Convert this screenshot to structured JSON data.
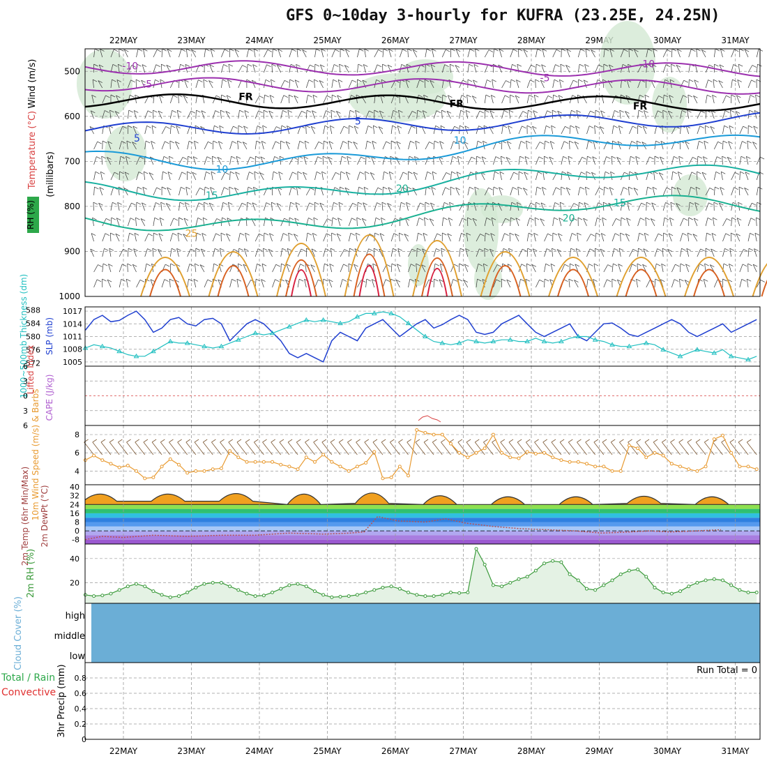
{
  "title": "GFS 0~10day 3-hourly for KUFRA (23.25E, 24.25N)",
  "dates": [
    "22MAY",
    "23MAY",
    "24MAY",
    "25MAY",
    "26MAY",
    "27MAY",
    "28MAY",
    "29MAY",
    "30MAY",
    "31MAY"
  ],
  "colors": {
    "grid": "#999999",
    "frame": "#000000",
    "slp": "#1f3fd0",
    "thick": "#1fbfc0",
    "speed": "#e89a30",
    "barb": "#7a5530",
    "rh2m": "#3a9a3a",
    "dewpt": "#b85050",
    "cloud": "#6baed6"
  },
  "chart_data": [
    {
      "name": "upper-air",
      "type": "contour",
      "ylabel": "(millibars)",
      "side_labels": [
        "Wind (m/s)",
        "Temperature (°C)",
        "RH (%)"
      ],
      "yticks": [
        500,
        600,
        700,
        800,
        900,
        1000
      ],
      "ylim": [
        1000,
        450
      ],
      "contour_labels": [
        {
          "text": "-10",
          "day": 0.1,
          "p": 488,
          "color": "#9b2fae"
        },
        {
          "text": "-10",
          "day": 7.7,
          "p": 483,
          "color": "#9b2fae"
        },
        {
          "text": "-5",
          "day": 0.35,
          "p": 528,
          "color": "#9b2fae"
        },
        {
          "text": "-5",
          "day": 6.2,
          "p": 514,
          "color": "#9b2fae"
        },
        {
          "text": "FR",
          "day": 1.8,
          "p": 556,
          "color": "#000000"
        },
        {
          "text": "FR",
          "day": 4.9,
          "p": 572,
          "color": "#000000"
        },
        {
          "text": "FR",
          "day": 7.6,
          "p": 577,
          "color": "#000000"
        },
        {
          "text": "5",
          "day": 0.2,
          "p": 648,
          "color": "#1f3fd0"
        },
        {
          "text": "5",
          "day": 3.45,
          "p": 610,
          "color": "#1f3fd0"
        },
        {
          "text": "10",
          "day": 1.45,
          "p": 717,
          "color": "#1a9ad8"
        },
        {
          "text": "10",
          "day": 4.95,
          "p": 653,
          "color": "#1a9ad8"
        },
        {
          "text": "15",
          "day": 1.3,
          "p": 775,
          "color": "#18b0a0"
        },
        {
          "text": "15",
          "day": 7.3,
          "p": 792,
          "color": "#18b0a0"
        },
        {
          "text": "20",
          "day": 4.1,
          "p": 760,
          "color": "#18b090"
        },
        {
          "text": "20",
          "day": 6.55,
          "p": 826,
          "color": "#18b090"
        },
        {
          "text": "25",
          "day": 1.0,
          "p": 860,
          "color": "#e0a030"
        }
      ]
    },
    {
      "name": "slp-thickness",
      "type": "line",
      "ylabel": "SLP (mb)",
      "ylabel2": "1000~500mb Thickness (dm)",
      "yticks_left": [
        572,
        576,
        580,
        584,
        588
      ],
      "yticks_right": [
        1005,
        1008,
        1011,
        1014,
        1017
      ],
      "ylim_right": [
        1004,
        1018
      ],
      "ylim_left": [
        571,
        589
      ],
      "series": [
        {
          "values": [
            1012.5,
            1015,
            1016,
            1014.5,
            1014.8,
            1016,
            1017,
            1015,
            1012,
            1013,
            1015,
            1015.5,
            1014,
            1013.5,
            1015,
            1015.3,
            1014,
            1010,
            1012,
            1014,
            1015,
            1014,
            1012,
            1010,
            1007,
            1006,
            1007,
            1006,
            1005,
            1010,
            1012,
            1011,
            1010,
            1013,
            1014,
            1015,
            1013,
            1011,
            1012.5,
            1014,
            1015,
            1013,
            1013.8,
            1015,
            1016,
            1015,
            1012,
            1011.5,
            1012,
            1014,
            1015,
            1016,
            1014,
            1012,
            1011,
            1012,
            1013,
            1014,
            1011,
            1010,
            1012,
            1014,
            1014.2,
            1013,
            1011.5,
            1011,
            1012,
            1013,
            1014,
            1015,
            1014,
            1012,
            1011,
            1012,
            1013,
            1014,
            1012,
            1013,
            1014,
            1015
          ]
        },
        {
          "values": [
            576.5,
            577.5,
            577,
            576.5,
            575.5,
            574.5,
            574,
            574,
            575.5,
            577,
            578.5,
            578,
            578,
            577.5,
            577,
            576.5,
            577,
            578,
            579,
            580,
            581,
            580.5,
            581,
            582,
            583,
            584,
            585,
            584.5,
            585,
            584.5,
            584,
            584.5,
            586,
            587,
            587,
            587.5,
            587,
            586,
            584,
            582,
            580,
            578.5,
            578,
            577.5,
            578,
            579,
            578.5,
            578,
            578.5,
            579,
            579,
            578.5,
            578.5,
            579.5,
            578.5,
            578,
            578.5,
            579.5,
            580,
            580,
            579,
            578.5,
            577.5,
            577,
            577,
            577.5,
            578,
            577.5,
            576,
            575,
            574,
            575,
            576,
            575.5,
            575,
            576,
            574,
            573.5,
            573,
            574,
            575,
            576,
            575.5,
            575,
            576
          ]
        }
      ]
    },
    {
      "name": "lifted-index",
      "type": "line",
      "ylabel": "Lifted Index",
      "ylabel2": "CAPE (J/kg)",
      "yticks": [
        -6,
        -3,
        0,
        3,
        6
      ],
      "ylim": [
        6,
        -6
      ]
    },
    {
      "name": "wind-10m",
      "type": "line",
      "ylabel": "10m Wind Speed (m/s) & Barbs",
      "yticks": [
        4,
        6,
        8
      ],
      "ylim": [
        2.5,
        9
      ],
      "series": [
        {
          "values": [
            5.2,
            5.7,
            5.2,
            4.8,
            4.4,
            4.6,
            4.0,
            3.2,
            3.3,
            4.5,
            5.3,
            4.7,
            3.8,
            4.0,
            4.0,
            4.2,
            4.3,
            6.2,
            5.5,
            5.0,
            5.0,
            5.0,
            5.0,
            4.7,
            4.5,
            4.2,
            5.5,
            5.0,
            5.8,
            5.0,
            4.5,
            4.0,
            4.5,
            4.9,
            6.1,
            3.2,
            3.3,
            4.5,
            3.5,
            8.5,
            8.2,
            8.0,
            8.0,
            7.0,
            6.0,
            5.5,
            6.0,
            6.5,
            8.0,
            6.0,
            5.5,
            5.4,
            6.1,
            5.9,
            6.0,
            5.5,
            5.2,
            5.0,
            5.0,
            4.8,
            4.5,
            4.5,
            4.0,
            4.0,
            6.8,
            6.5,
            5.5,
            6.0,
            5.7,
            4.8,
            4.5,
            4.2,
            4.0,
            4.5,
            7.5,
            7.9,
            6.0,
            4.5,
            4.5,
            4.2,
            5.0
          ]
        }
      ]
    },
    {
      "name": "temp-2m",
      "type": "area",
      "ylabel": "2m Temp (6hr Min/Max)",
      "ylabel2": "2m DewPt (°C)",
      "yticks": [
        -8,
        0,
        8,
        16,
        24,
        32,
        40
      ],
      "ylim": [
        -12,
        42
      ],
      "temp_lo": [
        27,
        27,
        24,
        25,
        24,
        24,
        24,
        25,
        24,
        24
      ],
      "temp_hi": [
        36,
        37,
        39,
        40,
        36,
        34,
        34,
        34,
        34,
        34
      ],
      "dew_x": [
        0,
        0.25,
        0.55,
        1,
        1.5,
        2,
        2.5,
        3,
        3.5,
        3.9,
        4.1,
        4.3,
        4.6,
        5,
        5.3,
        5.6,
        6,
        6.4,
        6.8,
        7.2,
        7.6,
        8,
        8.3,
        8.6,
        9,
        9.35
      ],
      "dew_y": [
        -8,
        -5,
        -6,
        -4,
        -5,
        -4,
        -4,
        -2,
        -3,
        -2,
        -1,
        13,
        9,
        8,
        11,
        7,
        4,
        2,
        1,
        0,
        -2,
        -1,
        0,
        -1,
        0,
        1
      ]
    },
    {
      "name": "rh-2m",
      "type": "line",
      "ylabel": "2m RH (%)",
      "yticks": [
        20,
        40
      ],
      "ylim": [
        3,
        52
      ],
      "series": [
        {
          "values": [
            10,
            9,
            9.5,
            11,
            14,
            17,
            19,
            17,
            13,
            10,
            8,
            9,
            12,
            16,
            19,
            20,
            20,
            17,
            14,
            11,
            9,
            9.5,
            12,
            15,
            18,
            19,
            17,
            13,
            10,
            8,
            8.5,
            9,
            10,
            12,
            14,
            16,
            17,
            15,
            12,
            10,
            9,
            9,
            10,
            12,
            11.5,
            12,
            48,
            35,
            18,
            17,
            20,
            23,
            25,
            30,
            36,
            38,
            37,
            27,
            22,
            15,
            14,
            18,
            22,
            27,
            30,
            31,
            25,
            16,
            12,
            11,
            13,
            17,
            20,
            22,
            23,
            22,
            18,
            14,
            12,
            12
          ]
        }
      ]
    },
    {
      "name": "cloud-cover",
      "type": "area",
      "ylabel": "Cloud Cover (%)",
      "yticks": [
        "high",
        "middle",
        "low"
      ]
    },
    {
      "name": "precip-3hr",
      "type": "bar",
      "ylabel": "3hr Precip (mm)",
      "ylabel2": "Total / Rain",
      "ylabel3": "Convective",
      "run_total": "Run Total = 0",
      "yticks": [
        0,
        0.2,
        0.4,
        0.6,
        0.8
      ],
      "ylim": [
        0,
        1
      ]
    }
  ]
}
